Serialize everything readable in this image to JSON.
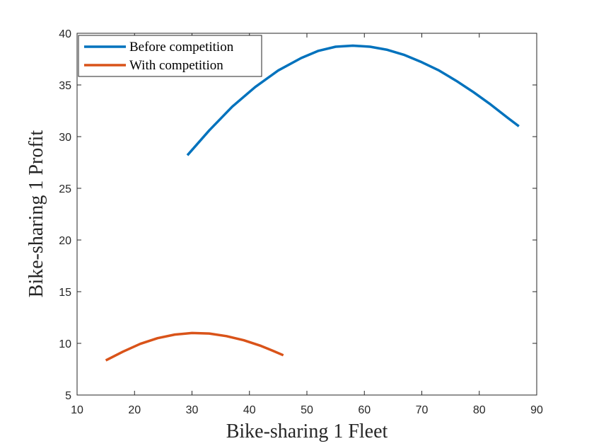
{
  "chart_data": {
    "type": "line",
    "title": "",
    "xlabel": "Bike-sharing 1 Fleet",
    "ylabel": "Bike-sharing 1 Profit",
    "xlim": [
      10,
      90
    ],
    "ylim": [
      5,
      40
    ],
    "xticks": [
      10,
      20,
      30,
      40,
      50,
      60,
      70,
      80,
      90
    ],
    "yticks": [
      5,
      10,
      15,
      20,
      25,
      30,
      35,
      40
    ],
    "xtick_labels": [
      "10",
      "20",
      "30",
      "40",
      "50",
      "60",
      "70",
      "80",
      "90"
    ],
    "ytick_labels": [
      "5",
      "10",
      "15",
      "20",
      "25",
      "30",
      "35",
      "40"
    ],
    "grid": false,
    "legend_position": "top-left",
    "series": [
      {
        "name": "Before competition",
        "color": "#0072BD",
        "x": [
          29.2,
          33.0,
          37.0,
          41.0,
          45.0,
          49.0,
          52.0,
          55.0,
          58.0,
          61.0,
          64.0,
          67.0,
          70.0,
          73.0,
          76.0,
          79.0,
          82.0,
          85.0,
          86.9
        ],
        "y": [
          28.2,
          30.6,
          32.9,
          34.8,
          36.4,
          37.6,
          38.3,
          38.7,
          38.8,
          38.7,
          38.4,
          37.9,
          37.2,
          36.4,
          35.4,
          34.3,
          33.1,
          31.8,
          31.0
        ]
      },
      {
        "name": "With competition",
        "color": "#D95319",
        "x": [
          15.0,
          18.0,
          21.0,
          24.0,
          27.0,
          30.0,
          33.0,
          36.0,
          39.0,
          42.0,
          44.0,
          45.9
        ],
        "y": [
          8.35,
          9.2,
          9.95,
          10.5,
          10.85,
          11.0,
          10.95,
          10.7,
          10.3,
          9.75,
          9.3,
          8.85
        ]
      }
    ]
  }
}
